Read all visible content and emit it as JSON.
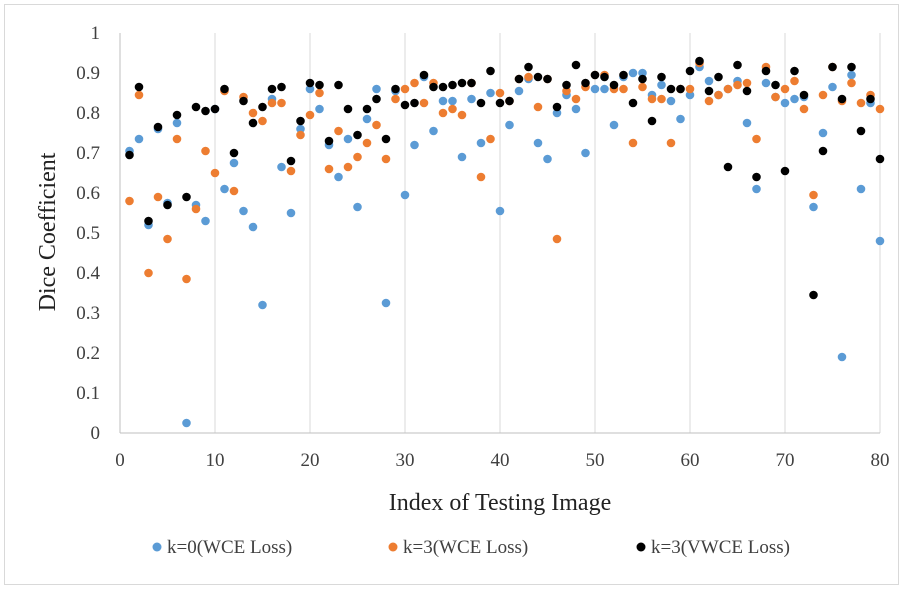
{
  "chart_data": {
    "type": "scatter",
    "title": "",
    "xlabel": "Index of Testing Image",
    "ylabel": "Dice Coefficient",
    "xlim": [
      0,
      80
    ],
    "ylim": [
      0,
      1
    ],
    "xticks": [
      0,
      10,
      20,
      30,
      40,
      50,
      60,
      70,
      80
    ],
    "yticks": [
      0,
      0.1,
      0.2,
      0.3,
      0.4,
      0.5,
      0.6,
      0.7,
      0.8,
      0.9,
      1
    ],
    "ytick_labels": [
      "0",
      "0.1",
      "0.2",
      "0.3",
      "0.4",
      "0.5",
      "0.6",
      "0.7",
      "0.8",
      "0.9",
      "1"
    ],
    "grid": "vertical",
    "legend": "bottom",
    "series": [
      {
        "name": "k=0(WCE Loss)",
        "color": "#5b9bd5",
        "x": [
          1,
          2,
          3,
          4,
          5,
          6,
          7,
          8,
          9,
          10,
          11,
          12,
          13,
          14,
          15,
          16,
          17,
          18,
          19,
          20,
          21,
          22,
          23,
          24,
          25,
          26,
          27,
          28,
          29,
          30,
          31,
          32,
          33,
          34,
          35,
          36,
          37,
          38,
          39,
          40,
          41,
          42,
          43,
          44,
          45,
          46,
          47,
          48,
          49,
          50,
          51,
          52,
          53,
          54,
          55,
          56,
          57,
          58,
          59,
          60,
          61,
          62,
          63,
          64,
          65,
          66,
          67,
          68,
          69,
          70,
          71,
          72,
          73,
          74,
          75,
          76,
          77,
          78,
          79,
          80
        ],
        "y": [
          0.705,
          0.735,
          0.52,
          0.76,
          0.575,
          0.775,
          0.025,
          0.57,
          0.53,
          0.81,
          0.61,
          0.675,
          0.555,
          0.515,
          0.32,
          0.835,
          0.665,
          0.55,
          0.76,
          0.86,
          0.81,
          0.72,
          0.64,
          0.735,
          0.565,
          0.785,
          0.86,
          0.325,
          0.855,
          0.595,
          0.72,
          0.89,
          0.755,
          0.83,
          0.83,
          0.69,
          0.835,
          0.725,
          0.85,
          0.555,
          0.77,
          0.855,
          0.885,
          0.725,
          0.685,
          0.8,
          0.845,
          0.81,
          0.7,
          0.86,
          0.86,
          0.77,
          0.89,
          0.9,
          0.9,
          0.845,
          0.87,
          0.83,
          0.785,
          0.845,
          0.915,
          0.88,
          0.845,
          0.86,
          0.88,
          0.775,
          0.61,
          0.875,
          0.84,
          0.825,
          0.835,
          0.84,
          0.565,
          0.75,
          0.865,
          0.19,
          0.895,
          0.61,
          0.825,
          0.48
        ]
      },
      {
        "name": "k=3(WCE Loss)",
        "color": "#ed7d31",
        "x": [
          1,
          2,
          3,
          4,
          5,
          6,
          7,
          8,
          9,
          10,
          11,
          12,
          13,
          14,
          15,
          16,
          17,
          18,
          19,
          20,
          21,
          22,
          23,
          24,
          25,
          26,
          27,
          28,
          29,
          30,
          31,
          32,
          33,
          34,
          35,
          36,
          37,
          38,
          39,
          40,
          41,
          42,
          43,
          44,
          45,
          46,
          47,
          48,
          49,
          50,
          51,
          52,
          53,
          54,
          55,
          56,
          57,
          58,
          59,
          60,
          61,
          62,
          63,
          64,
          65,
          66,
          67,
          68,
          69,
          70,
          71,
          72,
          73,
          74,
          75,
          76,
          77,
          78,
          79,
          80
        ],
        "y": [
          0.58,
          0.845,
          0.4,
          0.59,
          0.485,
          0.735,
          0.385,
          0.56,
          0.705,
          0.65,
          0.855,
          0.605,
          0.84,
          0.8,
          0.78,
          0.825,
          0.825,
          0.655,
          0.745,
          0.795,
          0.85,
          0.66,
          0.755,
          0.665,
          0.69,
          0.725,
          0.77,
          0.685,
          0.835,
          0.86,
          0.875,
          0.825,
          0.875,
          0.8,
          0.81,
          0.795,
          0.875,
          0.64,
          0.735,
          0.85,
          0.83,
          0.885,
          0.89,
          0.815,
          0.885,
          0.485,
          0.855,
          0.835,
          0.865,
          0.895,
          0.895,
          0.86,
          0.86,
          0.725,
          0.865,
          0.835,
          0.835,
          0.725,
          0.86,
          0.86,
          0.925,
          0.83,
          0.845,
          0.86,
          0.87,
          0.875,
          0.735,
          0.915,
          0.84,
          0.86,
          0.88,
          0.81,
          0.595,
          0.845,
          0.915,
          0.83,
          0.875,
          0.825,
          0.845,
          0.81
        ]
      },
      {
        "name": "k=3(VWCE Loss)",
        "color": "#000000",
        "x": [
          1,
          2,
          3,
          4,
          5,
          6,
          7,
          8,
          9,
          10,
          11,
          12,
          13,
          14,
          15,
          16,
          17,
          18,
          19,
          20,
          21,
          22,
          23,
          24,
          25,
          26,
          27,
          28,
          29,
          30,
          31,
          32,
          33,
          34,
          35,
          36,
          37,
          38,
          39,
          40,
          41,
          42,
          43,
          44,
          45,
          46,
          47,
          48,
          49,
          50,
          51,
          52,
          53,
          54,
          55,
          56,
          57,
          58,
          59,
          60,
          61,
          62,
          63,
          64,
          65,
          66,
          67,
          68,
          69,
          70,
          71,
          72,
          73,
          74,
          75,
          76,
          77,
          78,
          79,
          80
        ],
        "y": [
          0.695,
          0.865,
          0.53,
          0.765,
          0.57,
          0.795,
          0.59,
          0.815,
          0.805,
          0.81,
          0.86,
          0.7,
          0.83,
          0.775,
          0.815,
          0.86,
          0.865,
          0.68,
          0.78,
          0.875,
          0.87,
          0.73,
          0.87,
          0.81,
          0.745,
          0.81,
          0.835,
          0.735,
          0.86,
          0.82,
          0.825,
          0.895,
          0.865,
          0.865,
          0.87,
          0.875,
          0.875,
          0.825,
          0.905,
          0.825,
          0.83,
          0.885,
          0.915,
          0.89,
          0.885,
          0.815,
          0.87,
          0.92,
          0.875,
          0.895,
          0.89,
          0.87,
          0.895,
          0.825,
          0.885,
          0.78,
          0.89,
          0.86,
          0.86,
          0.905,
          0.93,
          0.855,
          0.89,
          0.665,
          0.92,
          0.855,
          0.64,
          0.905,
          0.87,
          0.655,
          0.905,
          0.845,
          0.345,
          0.705,
          0.915,
          0.835,
          0.915,
          0.755,
          0.835,
          0.685
        ]
      }
    ]
  }
}
